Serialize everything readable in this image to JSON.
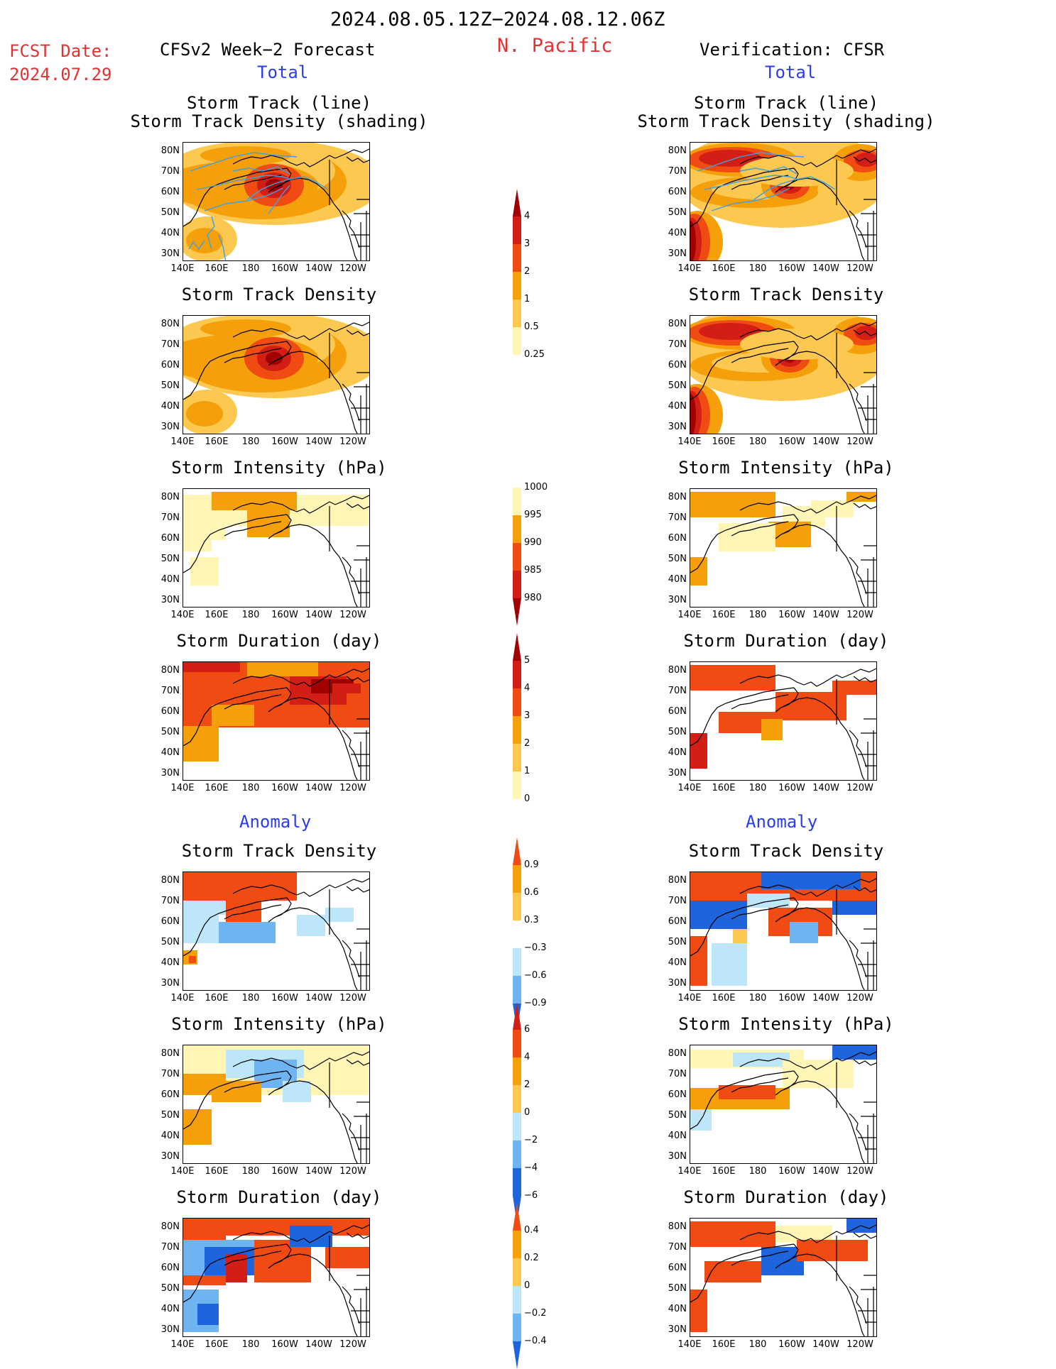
{
  "header": {
    "date_range": "2024.08.05.12Z−2024.08.12.06Z",
    "region": "N. Pacific",
    "fcst_date_label": "FCST Date:",
    "fcst_date_value": "2024.07.29",
    "left_title": "CFSv2 Week−2 Forecast",
    "right_title": "Verification: CFSR",
    "left_total": "Total",
    "right_total": "Total",
    "left_anomaly": "Anomaly",
    "right_anomaly": "Anomaly"
  },
  "axes": {
    "y_ticks": [
      "80N",
      "70N",
      "60N",
      "50N",
      "40N",
      "30N"
    ],
    "x_ticks": [
      "140E",
      "160E",
      "180",
      "160W",
      "140W",
      "120W"
    ]
  },
  "panels": {
    "p1": {
      "title1": "Storm Track (line)",
      "title2": "Storm Track Density (shading)"
    },
    "p2": {
      "title": "Storm Track Density"
    },
    "p3": {
      "title": "Storm Intensity (hPa)"
    },
    "p4": {
      "title": "Storm Duration (day)"
    },
    "p5": {
      "title": "Storm Track Density"
    },
    "p6": {
      "title": "Storm Intensity (hPa)"
    },
    "p7": {
      "title": "Storm Duration (day)"
    }
  },
  "colorbars": {
    "density": [
      "4",
      "3",
      "2",
      "1",
      "0.5",
      "0.25"
    ],
    "intensity": [
      "1000",
      "995",
      "990",
      "985",
      "980"
    ],
    "duration": [
      "5",
      "4",
      "3",
      "2",
      "1",
      "0"
    ],
    "density_anom": [
      "0.9",
      "0.6",
      "0.3",
      "−0.3",
      "−0.6",
      "−0.9"
    ],
    "intensity_anom": [
      "6",
      "4",
      "2",
      "0",
      "−2",
      "−4",
      "−6"
    ],
    "duration_anom": [
      "0.4",
      "0.2",
      "0",
      "−0.2",
      "−0.4"
    ]
  },
  "colors": {
    "dark_red": "#a00000",
    "red": "#d21e14",
    "orange_red": "#f04b12",
    "orange": "#f5a00a",
    "light_orange": "#fcc850",
    "pale_yellow": "#fff5b4",
    "light_blue": "#bee6fa",
    "blue": "#6eb4f0",
    "dark_blue": "#1e64dc",
    "track_line": "#3ca0e6"
  }
}
